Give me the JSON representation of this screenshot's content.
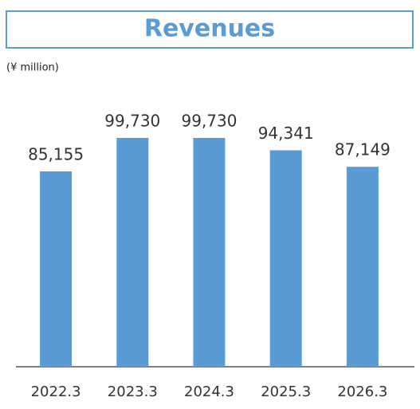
{
  "chart_data": {
    "type": "bar",
    "title": "Revenues",
    "subtitle": "(¥ million)",
    "categories": [
      "2022.3",
      "2023.3",
      "2024.3",
      "2025.3",
      "2026.3"
    ],
    "values": [
      85155,
      99730,
      99730,
      94341,
      87149
    ],
    "value_labels": [
      "85,155",
      "99,730",
      "99,730",
      "94,341",
      "87,149"
    ],
    "color": "#5b9bd5"
  }
}
